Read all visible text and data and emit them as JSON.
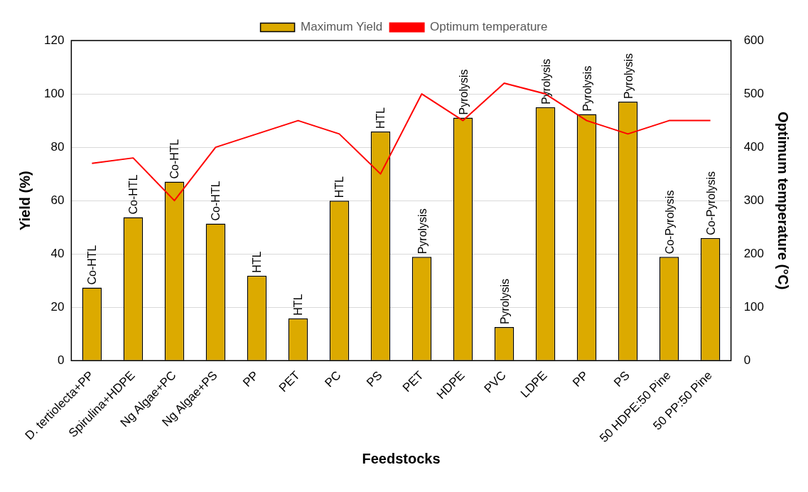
{
  "chart_data": {
    "type": "bar",
    "xlabel": "Feedstocks",
    "ylabel": "Yield (%)",
    "y2label": "Optimum temperature (°C)",
    "categories": [
      "D. tertiolecta+PP",
      "Spirulina+HDPE",
      "Ng Algae+PC",
      "Ng Algae+PS",
      "PP",
      "PET",
      "PC",
      "PS",
      "PET",
      "HDPE",
      "PVC",
      "LDPE",
      "PP",
      "PS",
      "50 HDPE:50 Pine",
      "50 PP:50 Pine"
    ],
    "series": [
      {
        "name": "Maximum Yield",
        "color": "#dcaa00",
        "values": [
          27.4,
          53.8,
          67.1,
          51.4,
          31.9,
          15.9,
          60,
          85.9,
          38.9,
          91.1,
          12.6,
          95,
          92.4,
          97.1,
          38.9,
          46
        ],
        "value_labels": [
          "Co-HTL",
          "Co-HTL",
          "Co-HTL",
          "Co-HTL",
          "HTL",
          "HTL",
          "HTL",
          "HTL",
          "Pyrolysis",
          "Pyrolysis",
          "Pyrolysis",
          "Pyrolysis",
          "Pyrolysis",
          "Pyrolysis",
          "Co-Pyrolysis",
          "Co-Pyrolysis"
        ]
      },
      {
        "name": "Optimum temperature",
        "type": "line",
        "axis": "y2",
        "color": "#ff0000",
        "values": [
          370,
          380,
          300,
          400,
          425,
          450,
          425,
          350,
          500,
          450,
          520,
          500,
          450,
          425,
          450,
          450
        ]
      }
    ],
    "ylim": [
      0,
      120
    ],
    "yticks": [
      0,
      20,
      40,
      60,
      80,
      100,
      120
    ],
    "y2lim": [
      0,
      600
    ],
    "y2ticks": [
      0,
      100,
      200,
      300,
      400,
      500,
      600
    ],
    "grid": "y",
    "legend": "top",
    "marker": "none"
  }
}
